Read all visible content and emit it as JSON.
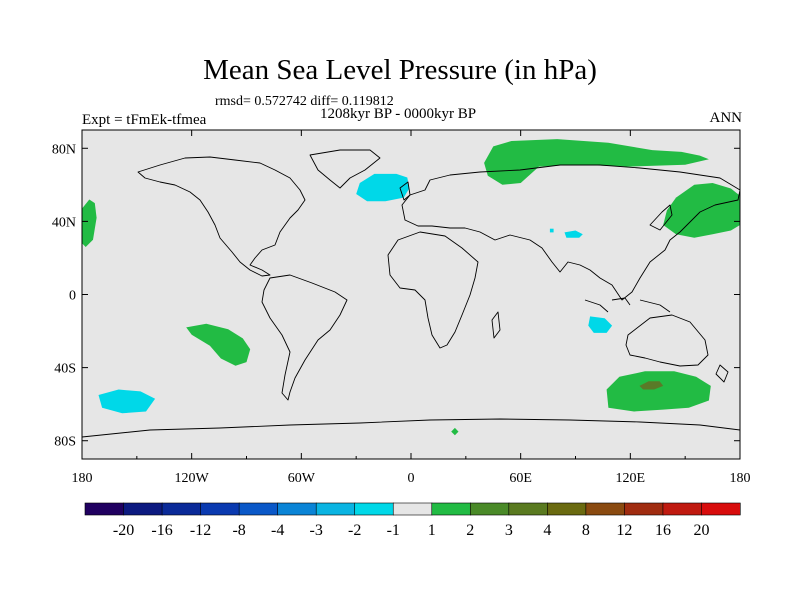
{
  "title": "Mean Sea Level Pressure (in hPa)",
  "stats": "rmsd= 0.572742 diff= 0.119812",
  "period": "1208kyr BP - 0000kyr BP",
  "experiment": "Expt = tFmEk-tfmea",
  "season": "ANN",
  "chart_data": {
    "type": "map",
    "projection": "cylindrical-equidistant",
    "lon_range": [
      -180,
      180
    ],
    "lat_range": [
      -90,
      90
    ],
    "lat_ticks": [
      {
        "value": 80,
        "label": "80N"
      },
      {
        "value": 40,
        "label": "40N"
      },
      {
        "value": 0,
        "label": "0"
      },
      {
        "value": -40,
        "label": "40S"
      },
      {
        "value": -80,
        "label": "80S"
      }
    ],
    "lon_ticks": [
      {
        "value": -180,
        "label": "180"
      },
      {
        "value": -120,
        "label": "120W"
      },
      {
        "value": -60,
        "label": "60W"
      },
      {
        "value": 0,
        "label": "0"
      },
      {
        "value": 60,
        "label": "60E"
      },
      {
        "value": 120,
        "label": "120E"
      },
      {
        "value": 180,
        "label": "180"
      }
    ],
    "background_color": "#e6e6e6",
    "anomaly_regions": [
      {
        "name": "north-pacific-east-positive",
        "level": "1 to 2",
        "color": "#22bb44",
        "polygon": [
          [
            -180,
            47
          ],
          [
            -176,
            52
          ],
          [
            -173,
            50
          ],
          [
            -172,
            42
          ],
          [
            -174,
            30
          ],
          [
            -178,
            26
          ],
          [
            -180,
            28
          ]
        ]
      },
      {
        "name": "north-pacific-west-positive",
        "level": "1 to 2",
        "color": "#22bb44",
        "polygon": [
          [
            180,
            38
          ],
          [
            180,
            54
          ],
          [
            175,
            58
          ],
          [
            165,
            61
          ],
          [
            155,
            60
          ],
          [
            145,
            53
          ],
          [
            140,
            46
          ],
          [
            138,
            38
          ],
          [
            145,
            33
          ],
          [
            155,
            31
          ],
          [
            165,
            33
          ],
          [
            175,
            35
          ]
        ]
      },
      {
        "name": "arctic-siberia-positive",
        "level": "1 to 2",
        "color": "#22bb44",
        "polygon": [
          [
            40,
            72
          ],
          [
            45,
            81
          ],
          [
            55,
            84
          ],
          [
            80,
            85
          ],
          [
            108,
            83
          ],
          [
            132,
            79
          ],
          [
            148,
            78
          ],
          [
            158,
            76
          ],
          [
            163,
            74
          ],
          [
            150,
            71
          ],
          [
            120,
            70
          ],
          [
            90,
            71
          ],
          [
            70,
            70
          ],
          [
            60,
            61
          ],
          [
            50,
            60
          ],
          [
            42,
            65
          ]
        ]
      },
      {
        "name": "south-pacific-positive",
        "level": "1 to 2",
        "color": "#22bb44",
        "polygon": [
          [
            -123,
            -18
          ],
          [
            -112,
            -16
          ],
          [
            -100,
            -19
          ],
          [
            -92,
            -24
          ],
          [
            -88,
            -30
          ],
          [
            -90,
            -37
          ],
          [
            -96,
            -39
          ],
          [
            -104,
            -35
          ],
          [
            -110,
            -28
          ],
          [
            -120,
            -22
          ]
        ]
      },
      {
        "name": "southern-ocean-australia-positive",
        "level": "1 to 2",
        "color": "#22bb44",
        "polygon": [
          [
            108,
            -62
          ],
          [
            122,
            -64
          ],
          [
            138,
            -63
          ],
          [
            152,
            -62
          ],
          [
            163,
            -58
          ],
          [
            164,
            -50
          ],
          [
            156,
            -45
          ],
          [
            144,
            -42
          ],
          [
            128,
            -42
          ],
          [
            114,
            -45
          ],
          [
            107,
            -52
          ]
        ]
      },
      {
        "name": "southern-ocean-australia-core",
        "level": "2 to 3",
        "color": "#5a7a28",
        "polygon": [
          [
            125,
            -50
          ],
          [
            130,
            -47.5
          ],
          [
            136,
            -47.5
          ],
          [
            138,
            -50
          ],
          [
            133,
            -52
          ],
          [
            127,
            -52
          ]
        ]
      },
      {
        "name": "antarctica-spot",
        "level": "1 to 2",
        "color": "#22bb44",
        "polygon": [
          [
            22,
            -75
          ],
          [
            24,
            -73
          ],
          [
            26,
            -75
          ],
          [
            24,
            -77
          ]
        ]
      },
      {
        "name": "north-atlantic-negative",
        "level": "-2 to -1",
        "color": "#00d8e8",
        "polygon": [
          [
            -28,
            61
          ],
          [
            -20,
            66
          ],
          [
            -8,
            66
          ],
          [
            -2,
            64
          ],
          [
            -1,
            58
          ],
          [
            -4,
            53
          ],
          [
            -14,
            51
          ],
          [
            -24,
            51
          ],
          [
            -30,
            55
          ]
        ]
      },
      {
        "name": "central-asia-negative",
        "level": "-2 to -1",
        "color": "#00d8e8",
        "polygon": [
          [
            84,
            34
          ],
          [
            90,
            35
          ],
          [
            94,
            33
          ],
          [
            92,
            31
          ],
          [
            85,
            31
          ]
        ]
      },
      {
        "name": "central-asia-spot-negative",
        "level": "-2 to -1",
        "color": "#00d8e8",
        "polygon": [
          [
            76,
            36
          ],
          [
            78,
            36
          ],
          [
            78,
            34
          ],
          [
            76,
            34
          ]
        ]
      },
      {
        "name": "indian-ocean-negative",
        "level": "-2 to -1",
        "color": "#00d8e8",
        "polygon": [
          [
            98,
            -12
          ],
          [
            106,
            -13
          ],
          [
            110,
            -17
          ],
          [
            107,
            -21
          ],
          [
            100,
            -21
          ],
          [
            97,
            -17
          ]
        ]
      },
      {
        "name": "south-pacific-negative",
        "level": "-2 to -1",
        "color": "#00d8e8",
        "polygon": [
          [
            -171,
            -55
          ],
          [
            -160,
            -52
          ],
          [
            -148,
            -53
          ],
          [
            -140,
            -57
          ],
          [
            -145,
            -64
          ],
          [
            -158,
            -65
          ],
          [
            -169,
            -62
          ]
        ]
      }
    ],
    "colorbar": {
      "labels": [
        "-20",
        "-16",
        "-12",
        "-8",
        "-4",
        "-3",
        "-2",
        "-1",
        "1",
        "2",
        "3",
        "4",
        "8",
        "12",
        "16",
        "20"
      ],
      "colors": [
        "#200060",
        "#0c1a80",
        "#0a2a98",
        "#0a3ab0",
        "#0a58c8",
        "#0a84d6",
        "#0ab4e2",
        "#00d8e8",
        "#e6e6e6",
        "#22bb44",
        "#4a8a28",
        "#5a7a20",
        "#6a6a10",
        "#8a4a10",
        "#a02c10",
        "#c01a10",
        "#d80c0c"
      ]
    }
  }
}
